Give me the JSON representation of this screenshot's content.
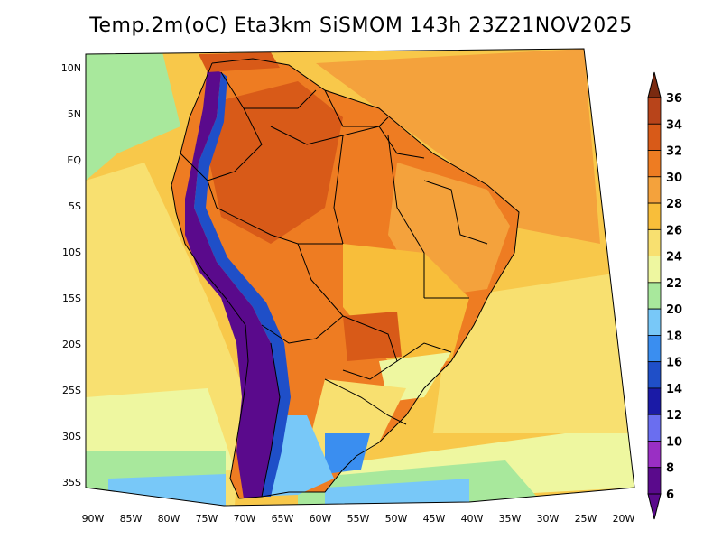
{
  "title": "Temp.2m(oC) Eta3km SiSMOM 143h 23Z21NOV2025",
  "lat_ticks": [
    "10N",
    "5N",
    "EQ",
    "5S",
    "10S",
    "15S",
    "20S",
    "25S",
    "30S",
    "35S"
  ],
  "lon_ticks": [
    "90W",
    "85W",
    "80W",
    "75W",
    "70W",
    "65W",
    "60W",
    "55W",
    "50W",
    "45W",
    "40W",
    "35W",
    "30W",
    "25W",
    "20W"
  ],
  "colorbar": {
    "labels": [
      "6",
      "8",
      "10",
      "12",
      "14",
      "16",
      "18",
      "20",
      "22",
      "24",
      "26",
      "28",
      "30",
      "32",
      "34",
      "36"
    ],
    "colors": [
      "#5a0a8c",
      "#9a2fc4",
      "#6a6ef0",
      "#1a1aa6",
      "#1f4fc8",
      "#3a8ef0",
      "#78c8f8",
      "#a8e89c",
      "#eef7a0",
      "#f8e070",
      "#f8be3a",
      "#f4a23c",
      "#ee7c22",
      "#d85a18",
      "#b8441a",
      "#7a2a10"
    ]
  },
  "field": {
    "ocean_color": "#f8c84a",
    "land_hot_color": "#ee7c22",
    "andes_cold_color": "#5a0a8c"
  }
}
